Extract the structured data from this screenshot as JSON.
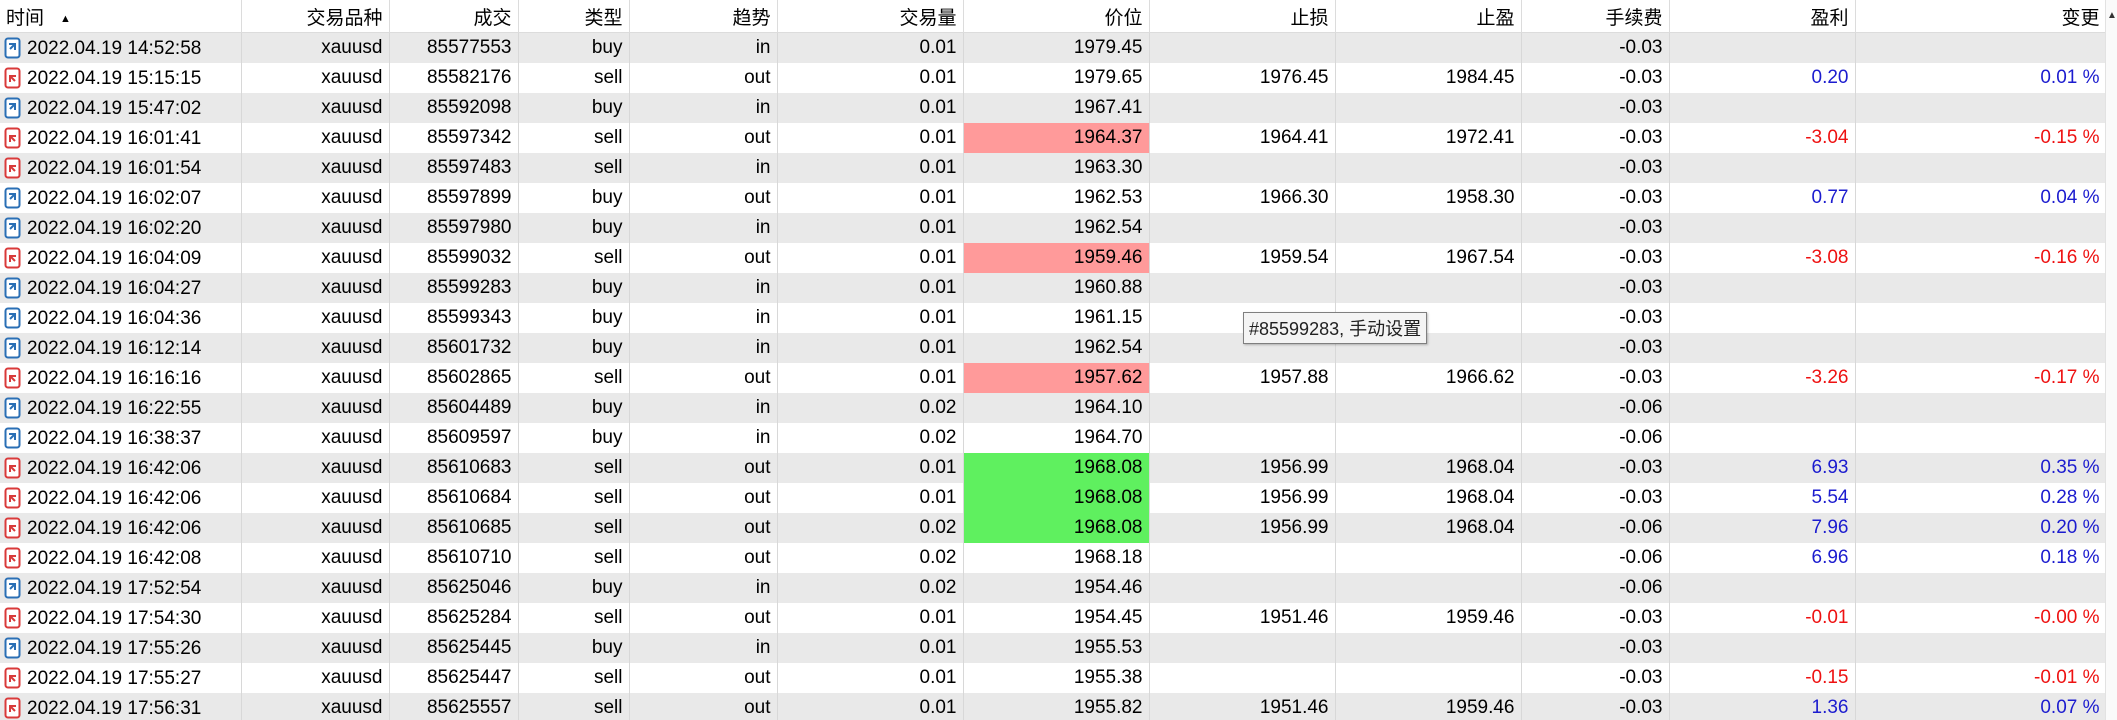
{
  "columns": [
    "时间",
    "交易品种",
    "成交",
    "类型",
    "趋势",
    "交易量",
    "价位",
    "止损",
    "止盈",
    "手续费",
    "盈利",
    "变更"
  ],
  "sort_indicator": "▲",
  "tooltip": "#85599283, 手动设置",
  "colors": {
    "row_alt": "#e9e9e9",
    "hl_red": "#ff9a9a",
    "hl_green": "#5ff05f",
    "profit": "#1c1ccf",
    "loss": "#ee1111"
  },
  "rows": [
    {
      "time": "2022.04.19 14:52:58",
      "symbol": "xauusd",
      "deal": "85577553",
      "type": "buy",
      "direction": "in",
      "volume": "0.01",
      "price": "1979.45",
      "sl": "",
      "tp": "",
      "commission": "-0.03",
      "profit": "",
      "change": "",
      "highlight": ""
    },
    {
      "time": "2022.04.19 15:15:15",
      "symbol": "xauusd",
      "deal": "85582176",
      "type": "sell",
      "direction": "out",
      "volume": "0.01",
      "price": "1979.65",
      "sl": "1976.45",
      "tp": "1984.45",
      "commission": "-0.03",
      "profit": "0.20",
      "change": "0.01 %",
      "highlight": ""
    },
    {
      "time": "2022.04.19 15:47:02",
      "symbol": "xauusd",
      "deal": "85592098",
      "type": "buy",
      "direction": "in",
      "volume": "0.01",
      "price": "1967.41",
      "sl": "",
      "tp": "",
      "commission": "-0.03",
      "profit": "",
      "change": "",
      "highlight": ""
    },
    {
      "time": "2022.04.19 16:01:41",
      "symbol": "xauusd",
      "deal": "85597342",
      "type": "sell",
      "direction": "out",
      "volume": "0.01",
      "price": "1964.37",
      "sl": "1964.41",
      "tp": "1972.41",
      "commission": "-0.03",
      "profit": "-3.04",
      "change": "-0.15 %",
      "highlight": "red"
    },
    {
      "time": "2022.04.19 16:01:54",
      "symbol": "xauusd",
      "deal": "85597483",
      "type": "sell",
      "direction": "in",
      "volume": "0.01",
      "price": "1963.30",
      "sl": "",
      "tp": "",
      "commission": "-0.03",
      "profit": "",
      "change": "",
      "highlight": ""
    },
    {
      "time": "2022.04.19 16:02:07",
      "symbol": "xauusd",
      "deal": "85597899",
      "type": "buy",
      "direction": "out",
      "volume": "0.01",
      "price": "1962.53",
      "sl": "1966.30",
      "tp": "1958.30",
      "commission": "-0.03",
      "profit": "0.77",
      "change": "0.04 %",
      "highlight": ""
    },
    {
      "time": "2022.04.19 16:02:20",
      "symbol": "xauusd",
      "deal": "85597980",
      "type": "buy",
      "direction": "in",
      "volume": "0.01",
      "price": "1962.54",
      "sl": "",
      "tp": "",
      "commission": "-0.03",
      "profit": "",
      "change": "",
      "highlight": ""
    },
    {
      "time": "2022.04.19 16:04:09",
      "symbol": "xauusd",
      "deal": "85599032",
      "type": "sell",
      "direction": "out",
      "volume": "0.01",
      "price": "1959.46",
      "sl": "1959.54",
      "tp": "1967.54",
      "commission": "-0.03",
      "profit": "-3.08",
      "change": "-0.16 %",
      "highlight": "red"
    },
    {
      "time": "2022.04.19 16:04:27",
      "symbol": "xauusd",
      "deal": "85599283",
      "type": "buy",
      "direction": "in",
      "volume": "0.01",
      "price": "1960.88",
      "sl": "",
      "tp": "",
      "commission": "-0.03",
      "profit": "",
      "change": "",
      "highlight": ""
    },
    {
      "time": "2022.04.19 16:04:36",
      "symbol": "xauusd",
      "deal": "85599343",
      "type": "buy",
      "direction": "in",
      "volume": "0.01",
      "price": "1961.15",
      "sl": "",
      "tp": "",
      "commission": "-0.03",
      "profit": "",
      "change": "",
      "highlight": ""
    },
    {
      "time": "2022.04.19 16:12:14",
      "symbol": "xauusd",
      "deal": "85601732",
      "type": "buy",
      "direction": "in",
      "volume": "0.01",
      "price": "1962.54",
      "sl": "",
      "tp": "",
      "commission": "-0.03",
      "profit": "",
      "change": "",
      "highlight": ""
    },
    {
      "time": "2022.04.19 16:16:16",
      "symbol": "xauusd",
      "deal": "85602865",
      "type": "sell",
      "direction": "out",
      "volume": "0.01",
      "price": "1957.62",
      "sl": "1957.88",
      "tp": "1966.62",
      "commission": "-0.03",
      "profit": "-3.26",
      "change": "-0.17 %",
      "highlight": "red"
    },
    {
      "time": "2022.04.19 16:22:55",
      "symbol": "xauusd",
      "deal": "85604489",
      "type": "buy",
      "direction": "in",
      "volume": "0.02",
      "price": "1964.10",
      "sl": "",
      "tp": "",
      "commission": "-0.06",
      "profit": "",
      "change": "",
      "highlight": ""
    },
    {
      "time": "2022.04.19 16:38:37",
      "symbol": "xauusd",
      "deal": "85609597",
      "type": "buy",
      "direction": "in",
      "volume": "0.02",
      "price": "1964.70",
      "sl": "",
      "tp": "",
      "commission": "-0.06",
      "profit": "",
      "change": "",
      "highlight": ""
    },
    {
      "time": "2022.04.19 16:42:06",
      "symbol": "xauusd",
      "deal": "85610683",
      "type": "sell",
      "direction": "out",
      "volume": "0.01",
      "price": "1968.08",
      "sl": "1956.99",
      "tp": "1968.04",
      "commission": "-0.03",
      "profit": "6.93",
      "change": "0.35 %",
      "highlight": "green"
    },
    {
      "time": "2022.04.19 16:42:06",
      "symbol": "xauusd",
      "deal": "85610684",
      "type": "sell",
      "direction": "out",
      "volume": "0.01",
      "price": "1968.08",
      "sl": "1956.99",
      "tp": "1968.04",
      "commission": "-0.03",
      "profit": "5.54",
      "change": "0.28 %",
      "highlight": "green"
    },
    {
      "time": "2022.04.19 16:42:06",
      "symbol": "xauusd",
      "deal": "85610685",
      "type": "sell",
      "direction": "out",
      "volume": "0.02",
      "price": "1968.08",
      "sl": "1956.99",
      "tp": "1968.04",
      "commission": "-0.06",
      "profit": "7.96",
      "change": "0.20 %",
      "highlight": "green"
    },
    {
      "time": "2022.04.19 16:42:08",
      "symbol": "xauusd",
      "deal": "85610710",
      "type": "sell",
      "direction": "out",
      "volume": "0.02",
      "price": "1968.18",
      "sl": "",
      "tp": "",
      "commission": "-0.06",
      "profit": "6.96",
      "change": "0.18 %",
      "highlight": ""
    },
    {
      "time": "2022.04.19 17:52:54",
      "symbol": "xauusd",
      "deal": "85625046",
      "type": "buy",
      "direction": "in",
      "volume": "0.02",
      "price": "1954.46",
      "sl": "",
      "tp": "",
      "commission": "-0.06",
      "profit": "",
      "change": "",
      "highlight": ""
    },
    {
      "time": "2022.04.19 17:54:30",
      "symbol": "xauusd",
      "deal": "85625284",
      "type": "sell",
      "direction": "out",
      "volume": "0.01",
      "price": "1954.45",
      "sl": "1951.46",
      "tp": "1959.46",
      "commission": "-0.03",
      "profit": "-0.01",
      "change": "-0.00 %",
      "highlight": ""
    },
    {
      "time": "2022.04.19 17:55:26",
      "symbol": "xauusd",
      "deal": "85625445",
      "type": "buy",
      "direction": "in",
      "volume": "0.01",
      "price": "1955.53",
      "sl": "",
      "tp": "",
      "commission": "-0.03",
      "profit": "",
      "change": "",
      "highlight": ""
    },
    {
      "time": "2022.04.19 17:55:27",
      "symbol": "xauusd",
      "deal": "85625447",
      "type": "sell",
      "direction": "out",
      "volume": "0.01",
      "price": "1955.38",
      "sl": "",
      "tp": "",
      "commission": "-0.03",
      "profit": "-0.15",
      "change": "-0.01 %",
      "highlight": ""
    },
    {
      "time": "2022.04.19 17:56:31",
      "symbol": "xauusd",
      "deal": "85625557",
      "type": "sell",
      "direction": "out",
      "volume": "0.01",
      "price": "1955.82",
      "sl": "1951.46",
      "tp": "1959.46",
      "commission": "-0.03",
      "profit": "1.36",
      "change": "0.07 %",
      "highlight": ""
    }
  ]
}
